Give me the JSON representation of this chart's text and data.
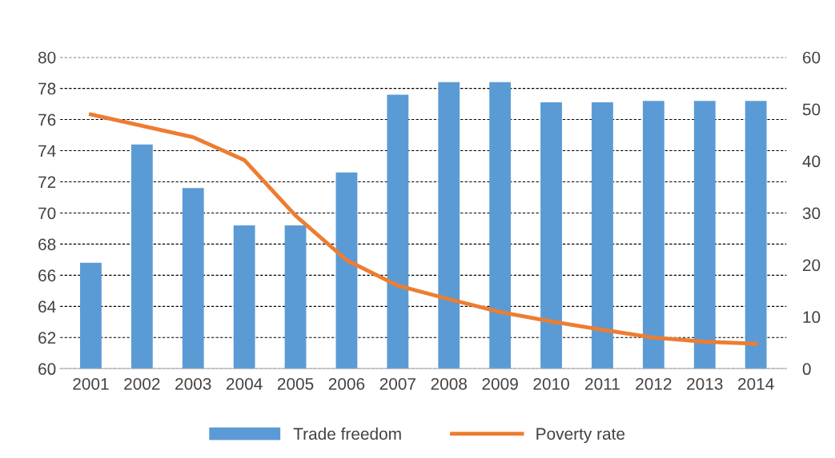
{
  "chart_data": {
    "type": "bar",
    "categories": [
      "2001",
      "2002",
      "2003",
      "2004",
      "2005",
      "2006",
      "2007",
      "2008",
      "2009",
      "2010",
      "2011",
      "2012",
      "2013",
      "2014"
    ],
    "series": [
      {
        "name": "Trade freedom",
        "color": "#5b9bd5",
        "values": [
          66.8,
          74.4,
          71.6,
          69.2,
          69.2,
          72.6,
          77.6,
          78.4,
          78.4,
          77.1,
          77.1,
          77.2,
          77.2,
          77.2
        ]
      },
      {
        "name": "Poverty rate",
        "type": "line",
        "axis": "y2",
        "color": "#ed7d31",
        "line_style": "solid",
        "values": [
          49,
          46.8,
          44.6,
          40.2,
          29.5,
          20.9,
          16,
          13.4,
          10.9,
          9.1,
          7.5,
          6,
          5.2,
          4.8
        ]
      }
    ],
    "ylim": [
      60,
      80
    ],
    "yticks": [
      60,
      62,
      64,
      66,
      68,
      70,
      72,
      74,
      76,
      78,
      80
    ],
    "y2lim": [
      0,
      60
    ],
    "y2ticks": [
      0,
      10,
      20,
      30,
      40,
      50,
      60
    ],
    "grid": "y",
    "legend": "bottom",
    "marker": "none"
  }
}
